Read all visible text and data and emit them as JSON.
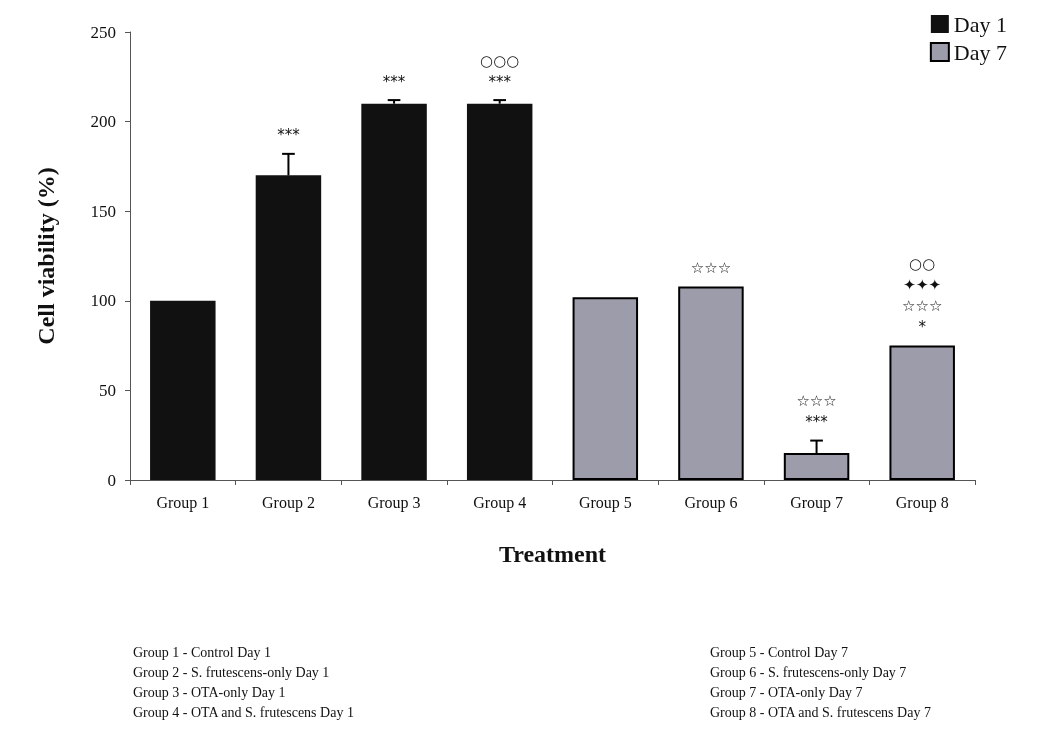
{
  "chart_data": {
    "type": "bar",
    "xlabel": "Treatment",
    "ylabel": "Cell viability (%)",
    "categories": [
      "Group 1",
      "Group 2",
      "Group 3",
      "Group 4",
      "Group 5",
      "Group 6",
      "Group 7",
      "Group 8"
    ],
    "stacked": true,
    "series": [
      {
        "name": "Day 1",
        "color": "#111111",
        "values": [
          100,
          170,
          210,
          210,
          null,
          null,
          null,
          null
        ],
        "errors": [
          null,
          12,
          2,
          2,
          null,
          null,
          null,
          null
        ]
      },
      {
        "name": "Day 7",
        "color": "#9c9cab",
        "values": [
          null,
          null,
          null,
          null,
          102,
          108,
          15,
          75
        ],
        "errors": [
          null,
          null,
          null,
          null,
          null,
          null,
          7,
          null
        ]
      }
    ],
    "ylim": [
      0,
      250
    ],
    "yticks": [
      0,
      50,
      100,
      150,
      200,
      250
    ],
    "grid": false,
    "legend": "top right",
    "annotations": [
      {
        "text": "***",
        "x": "Group 2",
        "y": 170
      },
      {
        "text": "***",
        "x": "Group 3",
        "y": 210
      },
      {
        "text": "○○○\n***",
        "x": "Group 4",
        "y": 210
      },
      {
        "text": "☆☆☆",
        "x": "Group 6",
        "y": 108
      },
      {
        "text": "☆☆☆\n***",
        "x": "Group 7",
        "y": 15
      },
      {
        "text": "○○\n✦✦✦\n☆☆☆\n*",
        "x": "Group 8",
        "y": 75
      },
      "Group 1 - Control Day 1",
      "Group 2 - S. frutescens-only Day 1",
      "Group 3 - OTA-only Day 1",
      "Group 4 - OTA and S. frutescens Day 1",
      "Group 5 - Control Day 7",
      "Group 6 - S. frutescens-only Day 7",
      "Group 7 - OTA-only Day 7",
      "Group 8 - OTA and S. frutescens Day 7"
    ]
  }
}
